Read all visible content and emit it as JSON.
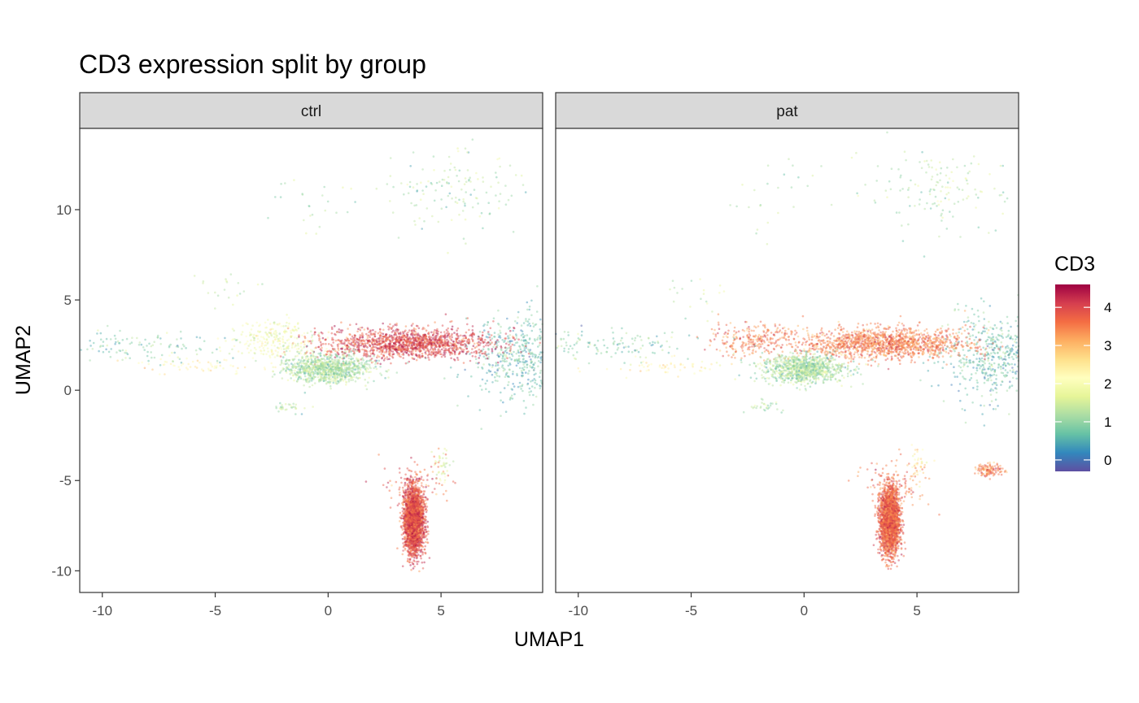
{
  "chart_data": {
    "type": "scatter",
    "title": "CD3 expression split by group",
    "xlabel": "UMAP1",
    "ylabel": "UMAP2",
    "xlim": [
      -11.0,
      9.5
    ],
    "ylim": [
      -11.2,
      14.5
    ],
    "xticks": [
      -10,
      -5,
      0,
      5
    ],
    "yticks": [
      -10,
      -5,
      0,
      5,
      10
    ],
    "xtick_labels": [
      "-10",
      "-5",
      "0",
      "5"
    ],
    "ytick_labels": [
      "-10",
      "-5",
      "0",
      "5",
      "10"
    ],
    "grid": false,
    "legend": {
      "title": "CD3",
      "placement": "right",
      "type": "colorbar",
      "range": [
        -0.3,
        4.6
      ],
      "ticks": [
        0,
        1,
        2,
        3,
        4
      ],
      "tick_labels": [
        "0",
        "1",
        "2",
        "3",
        "4"
      ],
      "colormap": [
        "#5E4FA2",
        "#3288BD",
        "#66C2A5",
        "#ABDDA4",
        "#E6F598",
        "#FFFFBF",
        "#FEE08B",
        "#FDAE61",
        "#F46D43",
        "#D53E4F",
        "#9E0142"
      ]
    },
    "panels": [
      {
        "facet": "ctrl",
        "clusters": [
          {
            "x": [
              8.5,
              4.5
            ],
            "y": [
              1.8,
              11.6
            ],
            "expr": [
              0.7,
              2.6
            ],
            "n": 520
          },
          {
            "x": [
              5.8,
              5.8
            ],
            "y": [
              11.1,
              10.7
            ],
            "expr": [
              1.2,
              1.2
            ],
            "n": 140
          },
          {
            "x": [
              -1.2,
              -4.9
            ],
            "y": [
              10.6,
              9.9
            ],
            "expr": [
              1.2,
              1.4
            ],
            "n": 25
          },
          {
            "x": [
              -4.7,
              -4.2
            ],
            "y": [
              5.4,
              5.0
            ],
            "expr": [
              1.4,
              1.4
            ],
            "n": 20
          },
          {
            "x": [
              3.6,
              7.7
            ],
            "y": [
              2.6,
              3.0
            ],
            "expr": [
              4.0,
              3.7
            ],
            "n": 1400
          },
          {
            "x": [
              -2.3,
              3.9
            ],
            "y": [
              2.8,
              3.8
            ],
            "expr": [
              1.9,
              2.7
            ],
            "n": 260
          },
          {
            "x": [
              0.0,
              -3.5
            ],
            "y": [
              1.2,
              2.7
            ],
            "expr": [
              1.2,
              2.3
            ],
            "n": 1000
          },
          {
            "x": [
              -1.8,
              -1.2
            ],
            "y": [
              -0.9,
              -0.4
            ],
            "expr": [
              1.3,
              1.3
            ],
            "n": 30
          },
          {
            "x": [
              -9.0,
              -9.0
            ],
            "y": [
              2.5,
              3.0
            ],
            "expr": [
              0.9,
              1.5
            ],
            "n": 140
          },
          {
            "x": [
              -6.0,
              -5.8
            ],
            "y": [
              1.3,
              0.8
            ],
            "expr": [
              2.3,
              1.3
            ],
            "n": 60
          },
          {
            "x": [
              0.4,
              2.7
            ],
            "y": [
              2.2,
              0.0
            ],
            "expr": [
              3.8,
              3.4
            ],
            "n": 15
          },
          {
            "x": [
              3.8,
              -0.3
            ],
            "y": [
              -7.2,
              -8.5
            ],
            "expr": [
              3.9,
              3.8
            ],
            "n": 2600
          },
          {
            "x": [
              5.0,
              0.3
            ],
            "y": [
              -4.1,
              -4.9
            ],
            "expr": [
              1.6,
              1.6
            ],
            "n": 40
          },
          {
            "x": [
              4.0,
              3.3
            ],
            "y": [
              -5.2,
              -5.7
            ],
            "expr": [
              3.7,
              3.4
            ],
            "n": 90
          }
        ]
      },
      {
        "facet": "pat",
        "clusters": [
          {
            "x": [
              8.5,
              4.5
            ],
            "y": [
              1.8,
              11.6
            ],
            "expr": [
              0.7,
              2.6
            ],
            "n": 520
          },
          {
            "x": [
              5.8,
              5.8
            ],
            "y": [
              11.1,
              10.7
            ],
            "expr": [
              1.2,
              1.2
            ],
            "n": 140
          },
          {
            "x": [
              -1.2,
              -4.9
            ],
            "y": [
              10.6,
              9.9
            ],
            "expr": [
              1.2,
              1.4
            ],
            "n": 25
          },
          {
            "x": [
              -4.7,
              -4.2
            ],
            "y": [
              5.4,
              5.0
            ],
            "expr": [
              1.4,
              1.4
            ],
            "n": 20
          },
          {
            "x": [
              3.6,
              7.7
            ],
            "y": [
              2.6,
              3.0
            ],
            "expr": [
              3.5,
              3.3
            ],
            "n": 1400
          },
          {
            "x": [
              -2.3,
              3.9
            ],
            "y": [
              2.8,
              3.8
            ],
            "expr": [
              3.5,
              3.5
            ],
            "n": 260
          },
          {
            "x": [
              0.0,
              -3.5
            ],
            "y": [
              1.2,
              2.7
            ],
            "expr": [
              1.2,
              2.3
            ],
            "n": 1000
          },
          {
            "x": [
              -1.8,
              -1.2
            ],
            "y": [
              -0.9,
              -0.4
            ],
            "expr": [
              1.3,
              1.3
            ],
            "n": 30
          },
          {
            "x": [
              -9.0,
              -9.0
            ],
            "y": [
              2.5,
              3.0
            ],
            "expr": [
              0.9,
              1.5
            ],
            "n": 140
          },
          {
            "x": [
              -6.0,
              -5.8
            ],
            "y": [
              1.3,
              0.8
            ],
            "expr": [
              2.3,
              1.3
            ],
            "n": 60
          },
          {
            "x": [
              0.4,
              2.7
            ],
            "y": [
              2.2,
              0.0
            ],
            "expr": [
              3.0,
              3.4
            ],
            "n": 15
          },
          {
            "x": [
              3.8,
              -0.3
            ],
            "y": [
              -7.2,
              -8.5
            ],
            "expr": [
              3.7,
              3.8
            ],
            "n": 2600
          },
          {
            "x": [
              5.0,
              0.3
            ],
            "y": [
              -4.1,
              -4.9
            ],
            "expr": [
              2.5,
              1.6
            ],
            "n": 40
          },
          {
            "x": [
              4.0,
              3.3
            ],
            "y": [
              -5.2,
              -5.7
            ],
            "expr": [
              3.5,
              3.4
            ],
            "n": 90
          },
          {
            "x": [
              8.2,
              0.8
            ],
            "y": [
              -4.4,
              -0.2
            ],
            "expr": [
              3.5,
              3.5
            ],
            "n": 120
          }
        ]
      }
    ]
  }
}
